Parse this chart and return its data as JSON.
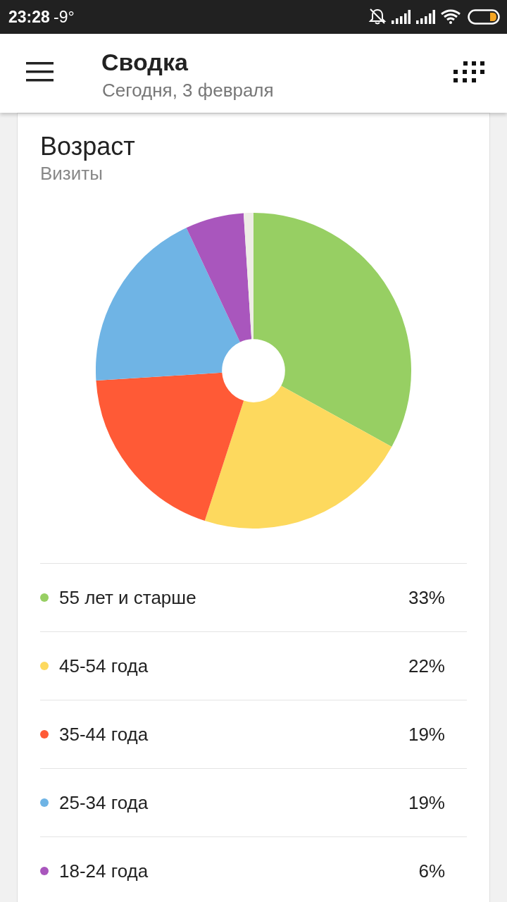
{
  "chart_data": {
    "type": "donut",
    "title": "Возраст",
    "subtitle": "Визиты",
    "categories": [
      "55 лет и старше",
      "45-54 года",
      "35-44 года",
      "25-34 года",
      "18-24 года",
      null
    ],
    "values": [
      33,
      22,
      19,
      19,
      6,
      1
    ],
    "colors": [
      "#97cf63",
      "#fdd95e",
      "#ff5a36",
      "#6fb4e5",
      "#a956bd",
      "#eeede6"
    ],
    "value_labels": [
      "33%",
      "22%",
      "19%",
      "19%",
      "6%",
      null
    ],
    "legend": "bottom",
    "annotations": [
      "23:28",
      "-9°",
      "Сводка",
      "Сегодня, 3 февраля"
    ]
  }
}
